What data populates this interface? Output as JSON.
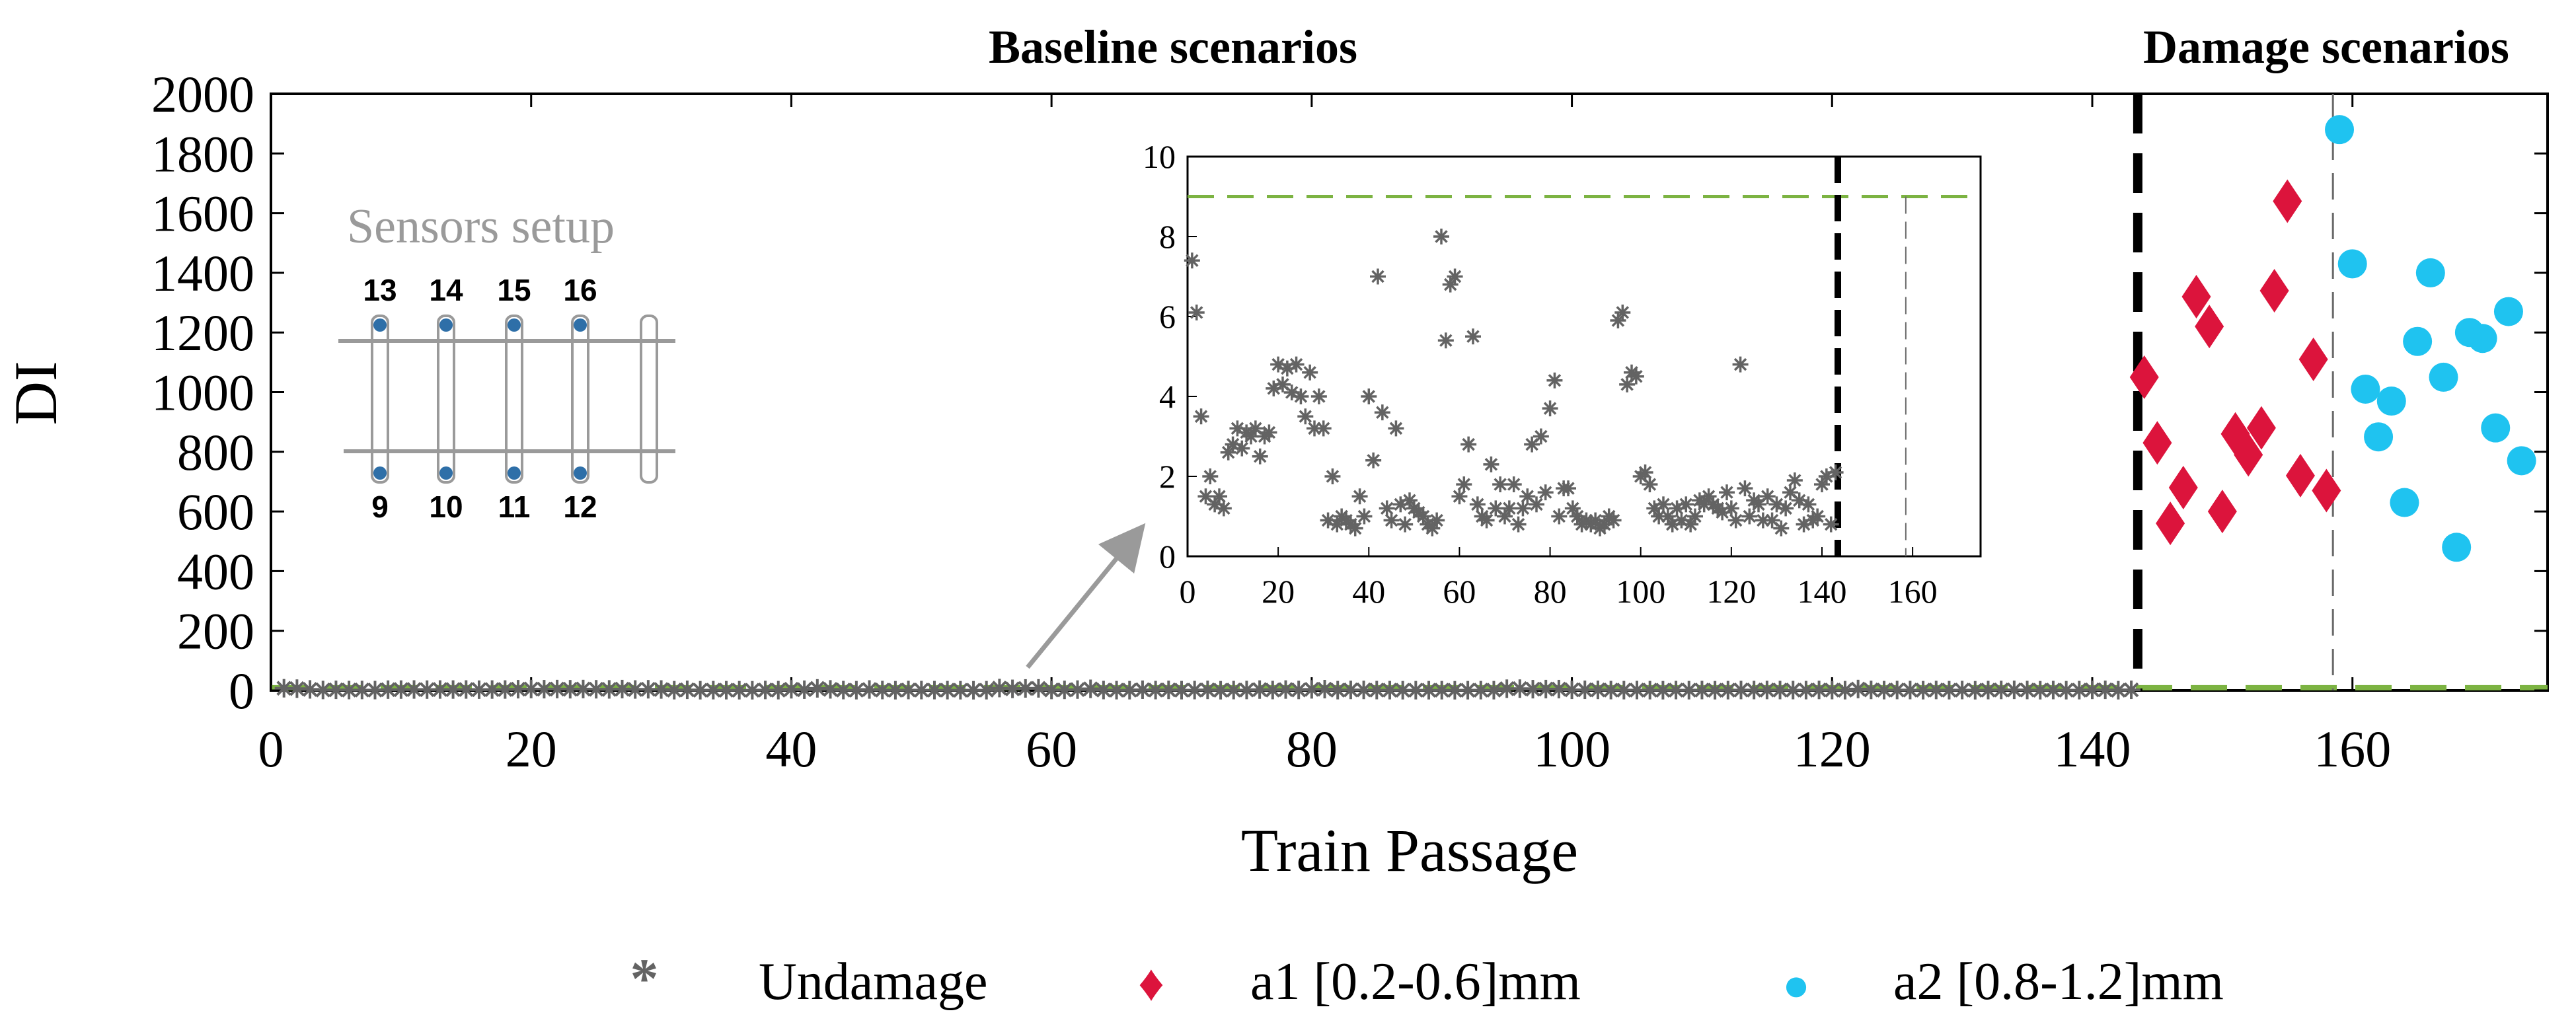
{
  "chart_data": {
    "type": "scatter",
    "title_baseline": "Baseline scenarios",
    "title_damage": "Damage scenarios",
    "xlabel": "Train Passage",
    "ylabel": "DI",
    "xlim": [
      0,
      175
    ],
    "ylim": [
      0,
      2000
    ],
    "xticks": [
      "0",
      "20",
      "40",
      "60",
      "80",
      "100",
      "120",
      "140",
      "160"
    ],
    "yticks": [
      "0",
      "200",
      "400",
      "600",
      "800",
      "1000",
      "1200",
      "1400",
      "1600",
      "1800",
      "2000"
    ],
    "threshold": 9,
    "divider_x": 143.5,
    "separator_x": 158.5,
    "series": [
      {
        "name": "Undamage",
        "marker": "asterisk",
        "color": "#636363",
        "x": [
          1,
          2,
          3,
          4,
          5,
          6,
          7,
          8,
          9,
          10,
          11,
          12,
          13,
          14,
          15,
          16,
          17,
          18,
          19,
          20,
          21,
          22,
          23,
          24,
          25,
          26,
          27,
          28,
          29,
          30,
          31,
          32,
          33,
          34,
          35,
          36,
          37,
          38,
          39,
          40,
          41,
          42,
          43,
          44,
          45,
          46,
          47,
          48,
          49,
          50,
          51,
          52,
          53,
          54,
          55,
          56,
          57,
          58,
          59,
          60,
          61,
          62,
          63,
          64,
          65,
          66,
          67,
          68,
          69,
          70,
          71,
          72,
          73,
          74,
          75,
          76,
          77,
          78,
          79,
          80,
          81,
          82,
          83,
          84,
          85,
          86,
          87,
          88,
          89,
          90,
          91,
          92,
          93,
          94,
          95,
          96,
          97,
          98,
          99,
          100,
          101,
          102,
          103,
          104,
          105,
          106,
          107,
          108,
          109,
          110,
          111,
          112,
          113,
          114,
          115,
          116,
          117,
          118,
          119,
          120,
          121,
          122,
          123,
          124,
          125,
          126,
          127,
          128,
          129,
          130,
          131,
          132,
          133,
          134,
          135,
          136,
          137,
          138,
          139,
          140,
          141,
          142,
          143
        ],
        "y": [
          7.4,
          6.1,
          3.5,
          1.5,
          2.0,
          1.3,
          1.5,
          1.2,
          2.6,
          2.8,
          3.2,
          2.7,
          3.1,
          3.0,
          3.2,
          2.5,
          3.0,
          3.1,
          4.2,
          4.8,
          4.3,
          4.7,
          4.1,
          4.8,
          4.0,
          3.5,
          4.6,
          3.2,
          4.0,
          3.2,
          0.9,
          2.0,
          0.8,
          1.0,
          0.9,
          0.8,
          0.7,
          1.5,
          1.0,
          4.0,
          2.4,
          7.0,
          3.6,
          1.2,
          0.9,
          3.2,
          1.3,
          0.8,
          1.4,
          1.2,
          1.1,
          1.0,
          0.8,
          0.7,
          0.9,
          8.0,
          5.4,
          6.8,
          7.0,
          1.5,
          1.8,
          2.8,
          5.5,
          1.3,
          1.0,
          0.9,
          2.3,
          1.2,
          1.8,
          1.0,
          1.2,
          1.8,
          0.8,
          1.2,
          1.5,
          2.8,
          1.3,
          3.0,
          1.6,
          3.7,
          4.4,
          1.0,
          1.7,
          1.7,
          1.2,
          1.0,
          0.8,
          0.9,
          0.8,
          0.9,
          0.7,
          0.8,
          1.0,
          0.9,
          5.9,
          6.1,
          4.3,
          4.6,
          4.5,
          2.0,
          2.1,
          1.8,
          1.2,
          1.0,
          1.3,
          1.0,
          0.8,
          1.2,
          0.9,
          1.3,
          0.8,
          1.0,
          1.4,
          1.3,
          1.5,
          1.3,
          1.2,
          1.1,
          1.6,
          1.2,
          0.9,
          4.8,
          1.7,
          1.0,
          1.4,
          1.3,
          0.9,
          1.5,
          0.9,
          1.3,
          0.7,
          1.2,
          1.6,
          1.9,
          1.4,
          0.8,
          1.3,
          0.9,
          1.0,
          1.8,
          2.0,
          0.8,
          2.1
        ]
      },
      {
        "name": "a1 [0.2-0.6]mm",
        "marker": "diamond",
        "color": "#dc143c",
        "x": [
          144,
          145,
          146,
          147,
          148,
          149,
          150,
          151,
          152,
          153,
          154,
          155,
          156,
          157,
          158
        ],
        "y": [
          1050,
          830,
          560,
          680,
          1320,
          1220,
          600,
          860,
          790,
          880,
          1340,
          1640,
          720,
          1110,
          670
        ]
      },
      {
        "name": "a2 [0.8-1.2]mm",
        "marker": "circle",
        "color": "#1fc3f0",
        "x": [
          159,
          160,
          161,
          162,
          163,
          164,
          165,
          166,
          167,
          168,
          169,
          170,
          171,
          172,
          173
        ],
        "y": [
          1880,
          1430,
          1010,
          850,
          970,
          630,
          1170,
          1400,
          1050,
          480,
          1200,
          1180,
          880,
          1270,
          770
        ]
      }
    ],
    "legend": [
      {
        "symbol": "*",
        "label": "Undamage"
      },
      {
        "symbol": "♦",
        "label": "a1 [0.2-0.6]mm"
      },
      {
        "symbol": "●",
        "label": "a2 [0.8-1.2]mm"
      }
    ],
    "inset": {
      "xlim": [
        0,
        175
      ],
      "ylim": [
        0,
        10
      ],
      "xticks": [
        "0",
        "20",
        "40",
        "60",
        "80",
        "100",
        "120",
        "140",
        "160"
      ],
      "yticks": [
        "0",
        "2",
        "4",
        "6",
        "8",
        "10"
      ]
    },
    "sensors_setup": {
      "title": "Sensors setup",
      "top_labels": [
        "13",
        "14",
        "15",
        "16"
      ],
      "bottom_labels": [
        "9",
        "10",
        "11",
        "12"
      ]
    }
  },
  "colors": {
    "undamage": "#636363",
    "a1": "#dc143c",
    "a2": "#1fc3f0",
    "threshold": "#7cb342",
    "axis": "#000000",
    "schematic": "#9a9a9a",
    "sensor": "#2e6fa8"
  }
}
